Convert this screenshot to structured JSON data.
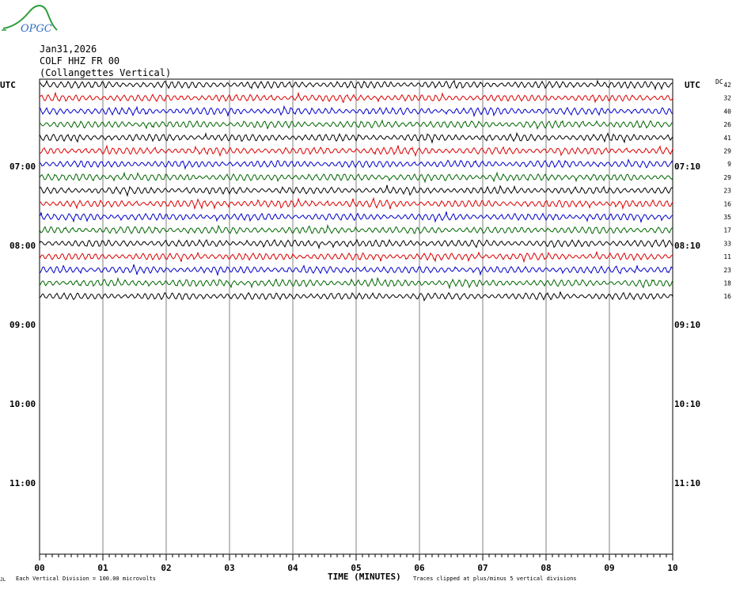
{
  "logo": {
    "text": "OPGC",
    "colors": {
      "swoosh": "#2e9e3c",
      "text": "#2f6cc0"
    }
  },
  "header": {
    "date": "Jan31,2026",
    "station": "COLF HHZ FR 00",
    "location": "(Collangettes Vertical)"
  },
  "left_axis_title": "UTC",
  "right_axis_title": "UTC",
  "dc_title": "DC",
  "footer": {
    "x_axis_title": "TIME (MINUTES)",
    "vertical_division": "Each Vertical Division =  100.00 microvolts",
    "clipping_note": "Traces clipped at plus/minus 5 vertical divisions",
    "corner_mark": "JL"
  },
  "chart_data": {
    "type": "line",
    "title": "COLF HHZ FR 00 (Collangettes Vertical)",
    "xlabel": "TIME (MINUTES)",
    "xlim": [
      0,
      10
    ],
    "x_ticks": [
      "00",
      "01",
      "02",
      "03",
      "04",
      "05",
      "06",
      "07",
      "08",
      "09",
      "10"
    ],
    "hour_labels_left": [
      "07:00",
      "08:00",
      "09:00",
      "10:00",
      "11:00"
    ],
    "hour_labels_right": [
      "07:10",
      "08:10",
      "09:10",
      "10:10",
      "11:10"
    ],
    "trace_minutes": 10,
    "trace_count": 17,
    "dc_offsets": [
      42,
      32,
      40,
      26,
      41,
      29,
      9,
      29,
      23,
      16,
      35,
      17,
      33,
      11,
      23,
      18,
      16
    ],
    "trace_colors": [
      "#000000",
      "#dd0000",
      "#0000cc",
      "#006600"
    ],
    "grid": true
  }
}
